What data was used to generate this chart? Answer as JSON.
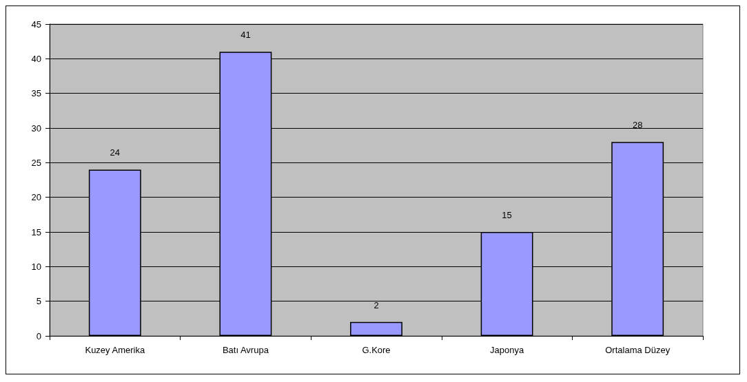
{
  "chart_data": {
    "type": "bar",
    "categories": [
      "Kuzey Amerika",
      "Batı Avrupa",
      "G.Kore",
      "Japonya",
      "Ortalama Düzey"
    ],
    "values": [
      24,
      41,
      2,
      15,
      28
    ],
    "color": "#9999ff",
    "ylim": [
      0,
      45
    ],
    "yticks": [
      0,
      5,
      10,
      15,
      20,
      25,
      30,
      35,
      40,
      45
    ],
    "grid": "y",
    "data_labels": true
  }
}
